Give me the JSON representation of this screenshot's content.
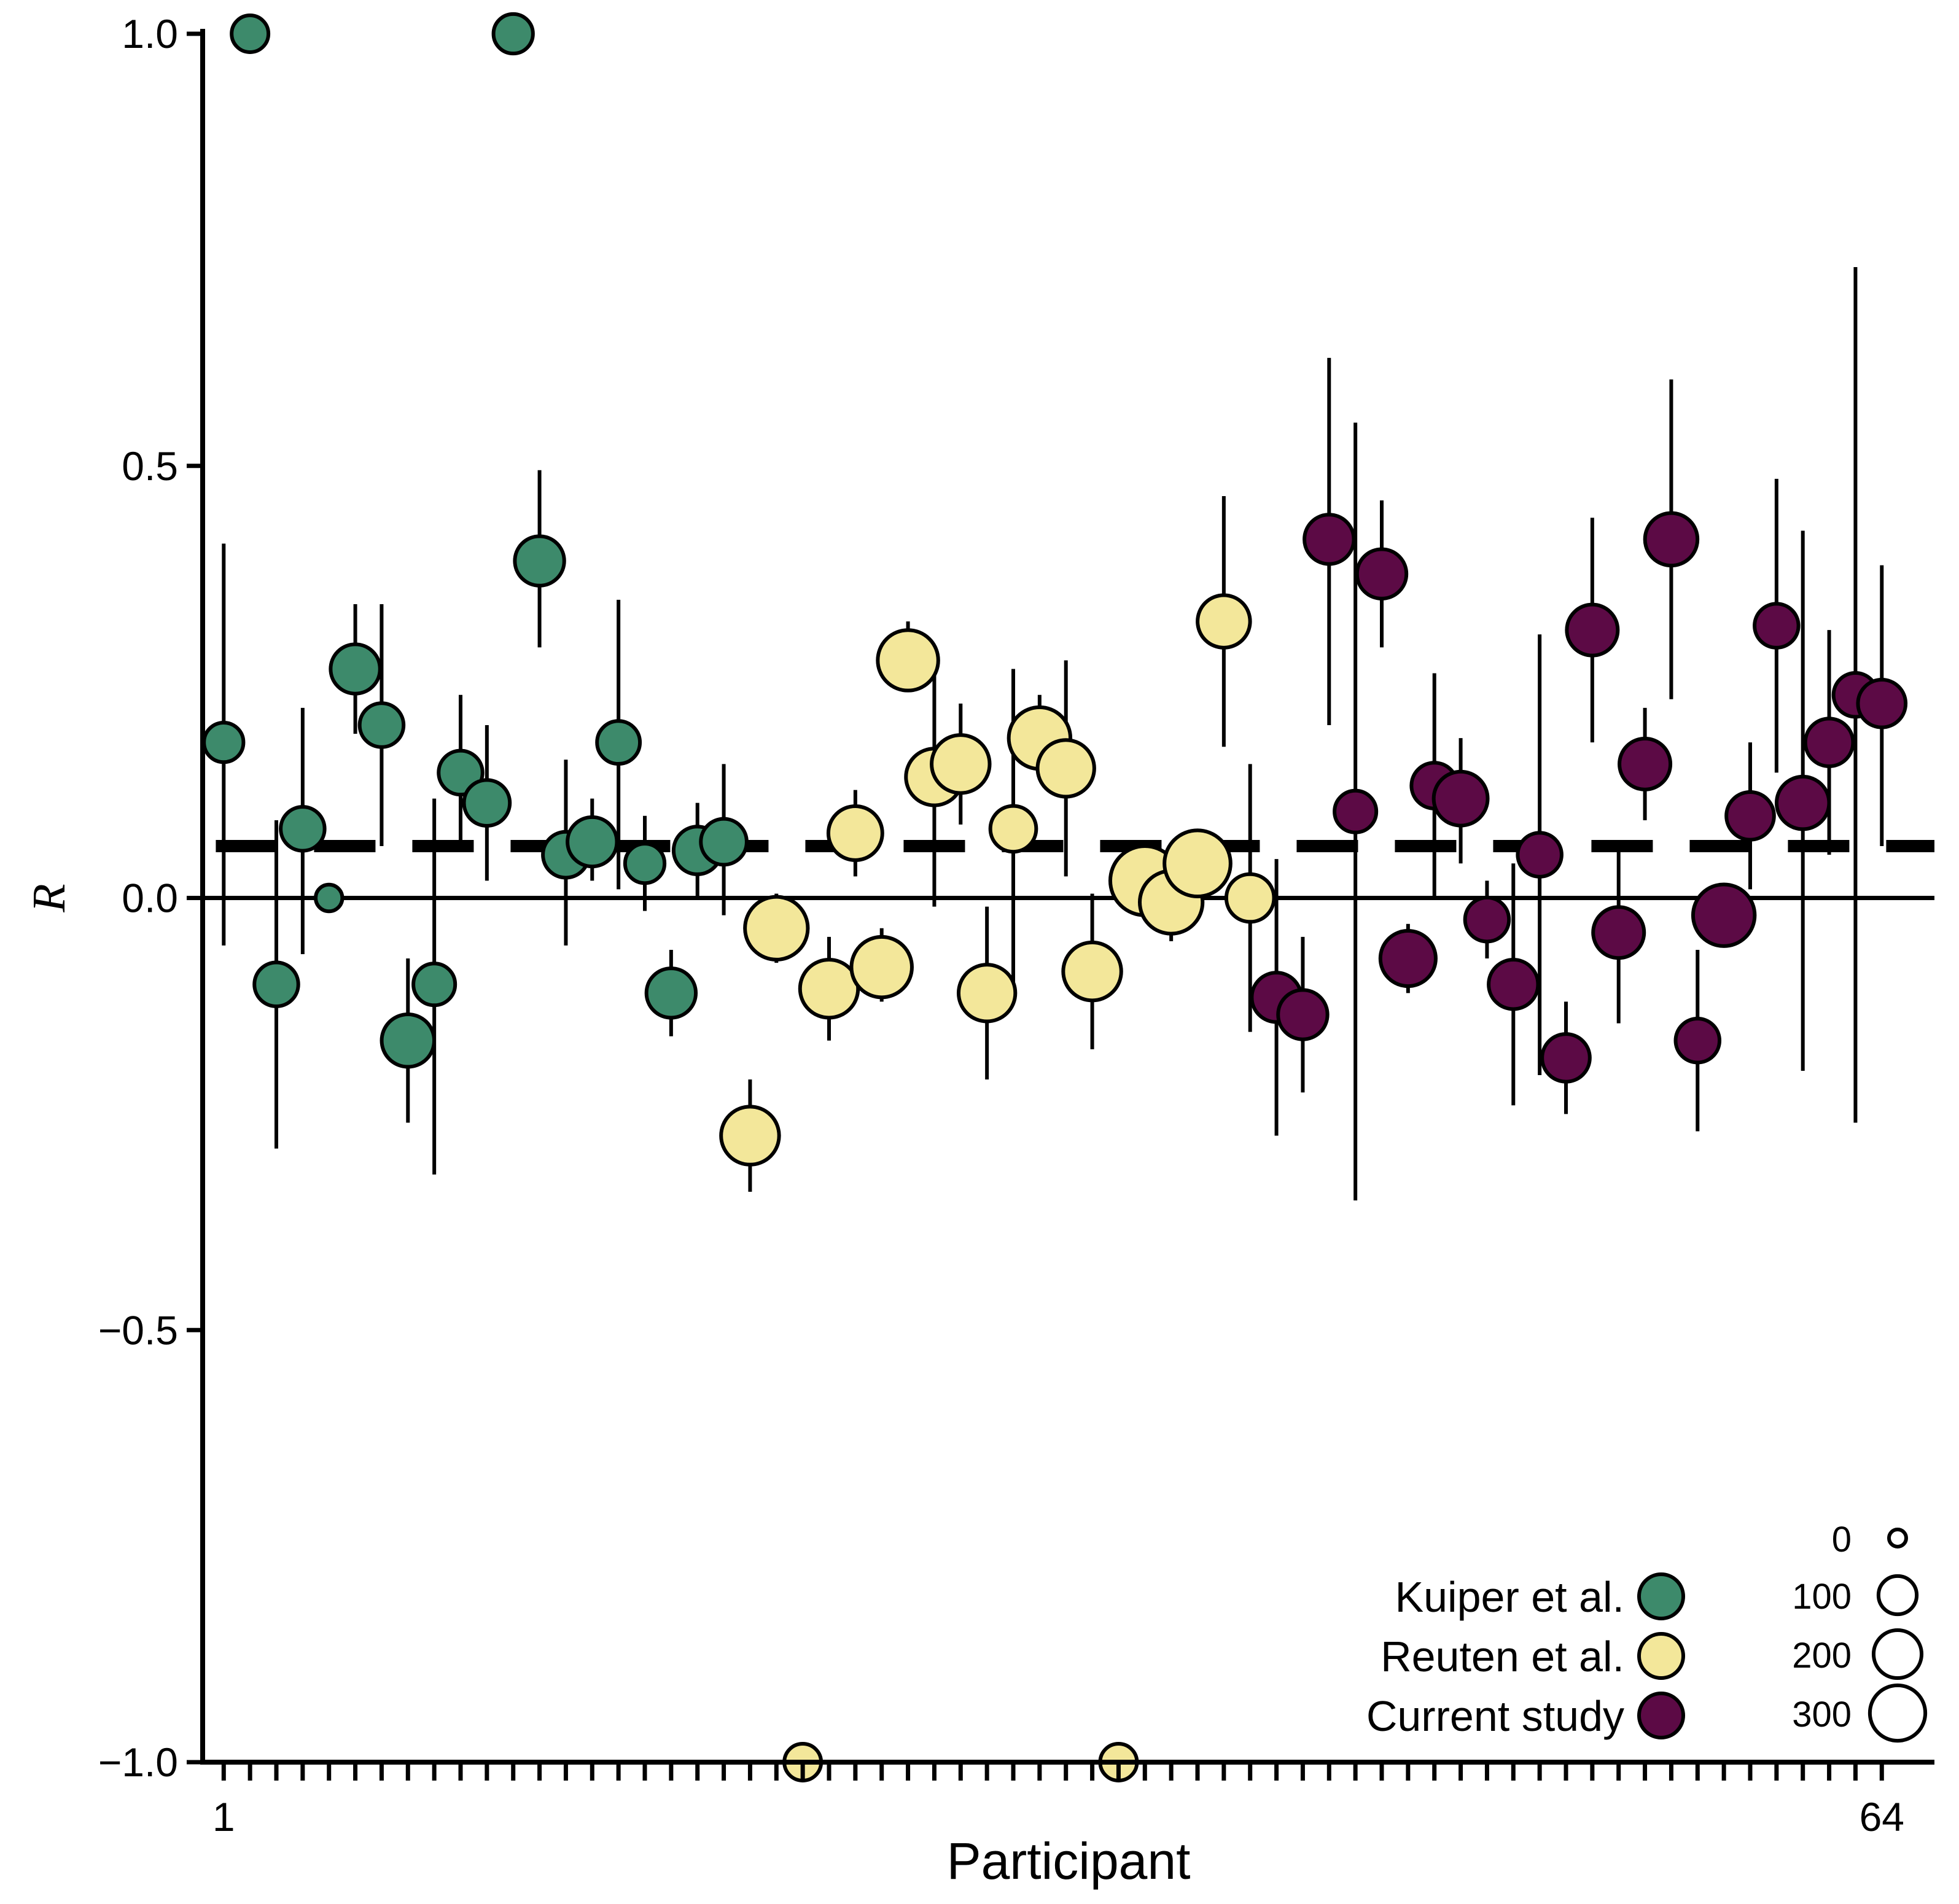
{
  "chart_data": {
    "type": "scatter",
    "xlabel": "Participant",
    "ylabel": "R",
    "xlim": [
      0.2,
      66
    ],
    "ylim": [
      -1.0,
      1.0
    ],
    "x_tick_labels": [
      {
        "x": 1,
        "label": "1"
      },
      {
        "x": 64,
        "label": "64"
      }
    ],
    "x_minor_ticks": [
      1,
      64
    ],
    "y_ticks": [
      {
        "value": 1.0,
        "label": "1.0"
      },
      {
        "value": 0.5,
        "label": "0.5"
      },
      {
        "value": 0.0,
        "label": "0.0"
      },
      {
        "value": -0.5,
        "label": "−0.5"
      },
      {
        "value": -1.0,
        "label": "−1.0"
      }
    ],
    "reference_lines": [
      {
        "type": "solid",
        "y": 0.0
      },
      {
        "type": "dashed",
        "y": 0.06
      }
    ],
    "grid": false,
    "legend": {
      "placement": "bottom-right",
      "groups": [
        {
          "label": "Kuiper et al.",
          "color": "#3d8a6b"
        },
        {
          "label": "Reuten et al.",
          "color": "#f3e79a"
        },
        {
          "label": "Current study",
          "color": "#5c0a45"
        }
      ],
      "size_title": "",
      "sizes": [
        {
          "label": "0",
          "value": 0
        },
        {
          "label": "100",
          "value": 100
        },
        {
          "label": "200",
          "value": 200
        },
        {
          "label": "300",
          "value": 300
        }
      ]
    },
    "series": [
      {
        "name": "Kuiper et al.",
        "color": "#3d8a6b",
        "points": [
          {
            "x": 1,
            "y": 0.18,
            "lo": -0.055,
            "hi": 0.41,
            "n": 40
          },
          {
            "x": 2,
            "y": 1.0,
            "lo": 1.0,
            "hi": 1.0,
            "n": 30
          },
          {
            "x": 3,
            "y": -0.1,
            "lo": -0.29,
            "hi": 0.09,
            "n": 60
          },
          {
            "x": 4,
            "y": 0.08,
            "lo": -0.065,
            "hi": 0.22,
            "n": 60
          },
          {
            "x": 5,
            "y": 0.0,
            "lo": 0.0,
            "hi": 0.0,
            "n": 5
          },
          {
            "x": 6,
            "y": 0.265,
            "lo": 0.19,
            "hi": 0.34,
            "n": 90
          },
          {
            "x": 7,
            "y": 0.2,
            "lo": 0.06,
            "hi": 0.34,
            "n": 60
          },
          {
            "x": 8,
            "y": -0.165,
            "lo": -0.26,
            "hi": -0.07,
            "n": 110
          },
          {
            "x": 9,
            "y": -0.1,
            "lo": -0.32,
            "hi": 0.115,
            "n": 50
          },
          {
            "x": 10,
            "y": 0.145,
            "lo": 0.06,
            "hi": 0.235,
            "n": 60
          },
          {
            "x": 11,
            "y": 0.11,
            "lo": 0.02,
            "hi": 0.2,
            "n": 70
          },
          {
            "x": 12,
            "y": 1.0,
            "lo": 1.0,
            "hi": 1.0,
            "n": 40
          },
          {
            "x": 13,
            "y": 0.39,
            "lo": 0.29,
            "hi": 0.495,
            "n": 90
          },
          {
            "x": 14,
            "y": 0.05,
            "lo": -0.055,
            "hi": 0.16,
            "n": 70
          },
          {
            "x": 15,
            "y": 0.065,
            "lo": 0.02,
            "hi": 0.115,
            "n": 90
          },
          {
            "x": 16,
            "y": 0.18,
            "lo": 0.01,
            "hi": 0.345,
            "n": 55
          },
          {
            "x": 17,
            "y": 0.04,
            "lo": -0.015,
            "hi": 0.095,
            "n": 40
          },
          {
            "x": 18,
            "y": -0.11,
            "lo": -0.16,
            "hi": -0.06,
            "n": 90
          },
          {
            "x": 19,
            "y": 0.055,
            "lo": 0.0,
            "hi": 0.11,
            "n": 80
          },
          {
            "x": 20,
            "y": 0.065,
            "lo": -0.02,
            "hi": 0.155,
            "n": 70
          }
        ]
      },
      {
        "name": "Reuten et al.",
        "color": "#f3e79a",
        "points": [
          {
            "x": 21,
            "y": -0.275,
            "lo": -0.34,
            "hi": -0.21,
            "n": 150
          },
          {
            "x": 22,
            "y": -0.035,
            "lo": -0.075,
            "hi": 0.005,
            "n": 190
          },
          {
            "x": 23,
            "y": -1.0,
            "lo": -1.0,
            "hi": -1.0,
            "n": 30
          },
          {
            "x": 24,
            "y": -0.105,
            "lo": -0.165,
            "hi": -0.045,
            "n": 150
          },
          {
            "x": 25,
            "y": 0.075,
            "lo": 0.025,
            "hi": 0.125,
            "n": 120
          },
          {
            "x": 26,
            "y": -0.08,
            "lo": -0.12,
            "hi": -0.035,
            "n": 170
          },
          {
            "x": 27,
            "y": 0.275,
            "lo": 0.24,
            "hi": 0.32,
            "n": 170
          },
          {
            "x": 28,
            "y": 0.14,
            "lo": -0.01,
            "hi": 0.29,
            "n": 140
          },
          {
            "x": 29,
            "y": 0.155,
            "lo": 0.085,
            "hi": 0.225,
            "n": 150
          },
          {
            "x": 30,
            "y": -0.11,
            "lo": -0.21,
            "hi": -0.01,
            "n": 140
          },
          {
            "x": 31,
            "y": 0.08,
            "lo": -0.105,
            "hi": 0.265,
            "n": 70
          },
          {
            "x": 32,
            "y": 0.185,
            "lo": 0.14,
            "hi": 0.235,
            "n": 180
          },
          {
            "x": 33,
            "y": 0.15,
            "lo": 0.025,
            "hi": 0.275,
            "n": 140
          },
          {
            "x": 34,
            "y": -0.085,
            "lo": -0.175,
            "hi": 0.005,
            "n": 150
          },
          {
            "x": 35,
            "y": -1.0,
            "lo": -1.0,
            "hi": -1.0,
            "n": 30
          },
          {
            "x": 36,
            "y": 0.02,
            "lo": -0.01,
            "hi": 0.05,
            "n": 250
          },
          {
            "x": 37,
            "y": -0.005,
            "lo": -0.05,
            "hi": 0.04,
            "n": 190
          },
          {
            "x": 38,
            "y": 0.04,
            "lo": 0.02,
            "hi": 0.06,
            "n": 220
          },
          {
            "x": 39,
            "y": 0.32,
            "lo": 0.175,
            "hi": 0.465,
            "n": 110
          },
          {
            "x": 40,
            "y": 0.0,
            "lo": -0.155,
            "hi": 0.155,
            "n": 80
          }
        ]
      },
      {
        "name": "Current study",
        "color": "#5c0a45",
        "points": [
          {
            "x": 41,
            "y": -0.115,
            "lo": -0.275,
            "hi": 0.045,
            "n": 90
          },
          {
            "x": 42,
            "y": -0.135,
            "lo": -0.225,
            "hi": -0.045,
            "n": 90
          },
          {
            "x": 43,
            "y": 0.415,
            "lo": 0.2,
            "hi": 0.625,
            "n": 90
          },
          {
            "x": 44,
            "y": 0.1,
            "lo": -0.35,
            "hi": 0.55,
            "n": 50
          },
          {
            "x": 45,
            "y": 0.375,
            "lo": 0.29,
            "hi": 0.46,
            "n": 90
          },
          {
            "x": 46,
            "y": -0.07,
            "lo": -0.11,
            "hi": -0.03,
            "n": 130
          },
          {
            "x": 47,
            "y": 0.13,
            "lo": 0.0,
            "hi": 0.26,
            "n": 70
          },
          {
            "x": 48,
            "y": 0.115,
            "lo": 0.04,
            "hi": 0.185,
            "n": 120
          },
          {
            "x": 49,
            "y": -0.025,
            "lo": -0.07,
            "hi": 0.02,
            "n": 60
          },
          {
            "x": 50,
            "y": -0.1,
            "lo": -0.24,
            "hi": 0.04,
            "n": 90
          },
          {
            "x": 51,
            "y": 0.05,
            "lo": -0.205,
            "hi": 0.305,
            "n": 60
          },
          {
            "x": 52,
            "y": -0.185,
            "lo": -0.25,
            "hi": -0.12,
            "n": 80
          },
          {
            "x": 53,
            "y": 0.31,
            "lo": 0.18,
            "hi": 0.44,
            "n": 100
          },
          {
            "x": 54,
            "y": -0.04,
            "lo": -0.145,
            "hi": 0.065,
            "n": 100
          },
          {
            "x": 55,
            "y": 0.155,
            "lo": 0.09,
            "hi": 0.22,
            "n": 100
          },
          {
            "x": 56,
            "y": 0.415,
            "lo": 0.23,
            "hi": 0.6,
            "n": 110
          },
          {
            "x": 57,
            "y": -0.165,
            "lo": -0.27,
            "hi": -0.06,
            "n": 60
          },
          {
            "x": 58,
            "y": -0.02,
            "lo": -0.02,
            "hi": -0.02,
            "n": 180
          },
          {
            "x": 59,
            "y": 0.095,
            "lo": 0.01,
            "hi": 0.18,
            "n": 80
          },
          {
            "x": 60,
            "y": 0.315,
            "lo": 0.145,
            "hi": 0.485,
            "n": 60
          },
          {
            "x": 61,
            "y": 0.11,
            "lo": -0.2,
            "hi": 0.425,
            "n": 110
          },
          {
            "x": 62,
            "y": 0.18,
            "lo": 0.05,
            "hi": 0.31,
            "n": 80
          },
          {
            "x": 63,
            "y": 0.235,
            "lo": -0.26,
            "hi": 0.73,
            "n": 60
          },
          {
            "x": 64,
            "y": 0.225,
            "lo": 0.06,
            "hi": 0.385,
            "n": 80
          }
        ]
      }
    ]
  }
}
